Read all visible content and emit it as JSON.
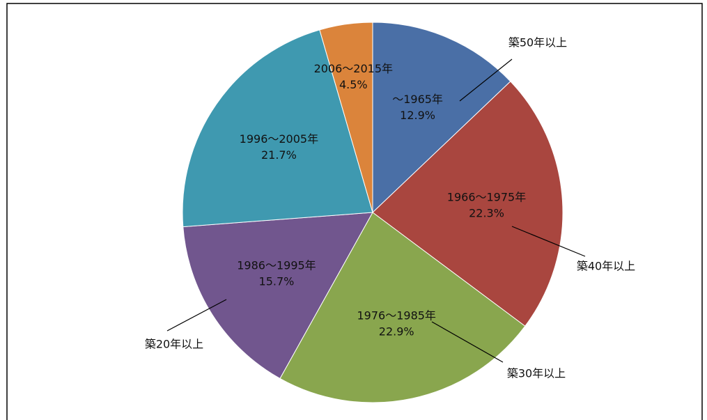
{
  "chart_data": {
    "type": "pie",
    "categories": [
      "～1965年",
      "1966～1975年",
      "1976～1985年",
      "1986～1995年",
      "1996～2005年",
      "2006～2015年"
    ],
    "values": [
      12.9,
      22.3,
      22.9,
      15.7,
      21.7,
      4.5
    ],
    "value_labels": [
      "12.9%",
      "22.3%",
      "22.9%",
      "15.7%",
      "21.7%",
      "4.5%"
    ],
    "colors": [
      "#4a6fa6",
      "#a9463f",
      "#89a64e",
      "#71568e",
      "#3f99b0",
      "#db843b"
    ],
    "annotations": [
      "築50年以上",
      "築40年以上",
      "築30年以上",
      "築20年以上"
    ]
  }
}
